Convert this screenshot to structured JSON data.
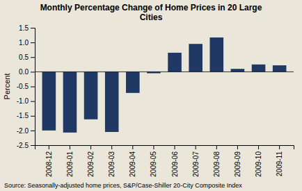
{
  "chart_data": {
    "type": "bar",
    "title": "Monthly Percentage Change of Home Prices in 20 Large\nCities",
    "ylabel": "Percent",
    "annotations": [
      "Source: Seasonally-adjusted home prices, S&P/Case-Shiller 20-City Composite Index"
    ],
    "categories": [
      "2008-12",
      "2009-01",
      "2009-02",
      "2009-03",
      "2009-04",
      "2009-05",
      "2009-06",
      "2009-07",
      "2009-08",
      "2009-09",
      "2009-10",
      "2009-11"
    ],
    "values": [
      -2.0,
      -2.07,
      -1.62,
      -2.05,
      -0.72,
      -0.05,
      0.65,
      0.95,
      1.17,
      0.1,
      0.25,
      0.22
    ],
    "color": "#1F3864",
    "ylim": [
      -2.5,
      1.5
    ],
    "yticks": [
      -2.5,
      {
        "value": -2.0,
        "label": "-2.0"
      },
      -1.5,
      {
        "value": -1.0,
        "label": "-1.0"
      },
      -0.5,
      {
        "value": 0.0,
        "label": "0.0"
      },
      0.5,
      {
        "value": 1.0,
        "label": "1.0"
      },
      1.5
    ],
    "grid": false
  }
}
